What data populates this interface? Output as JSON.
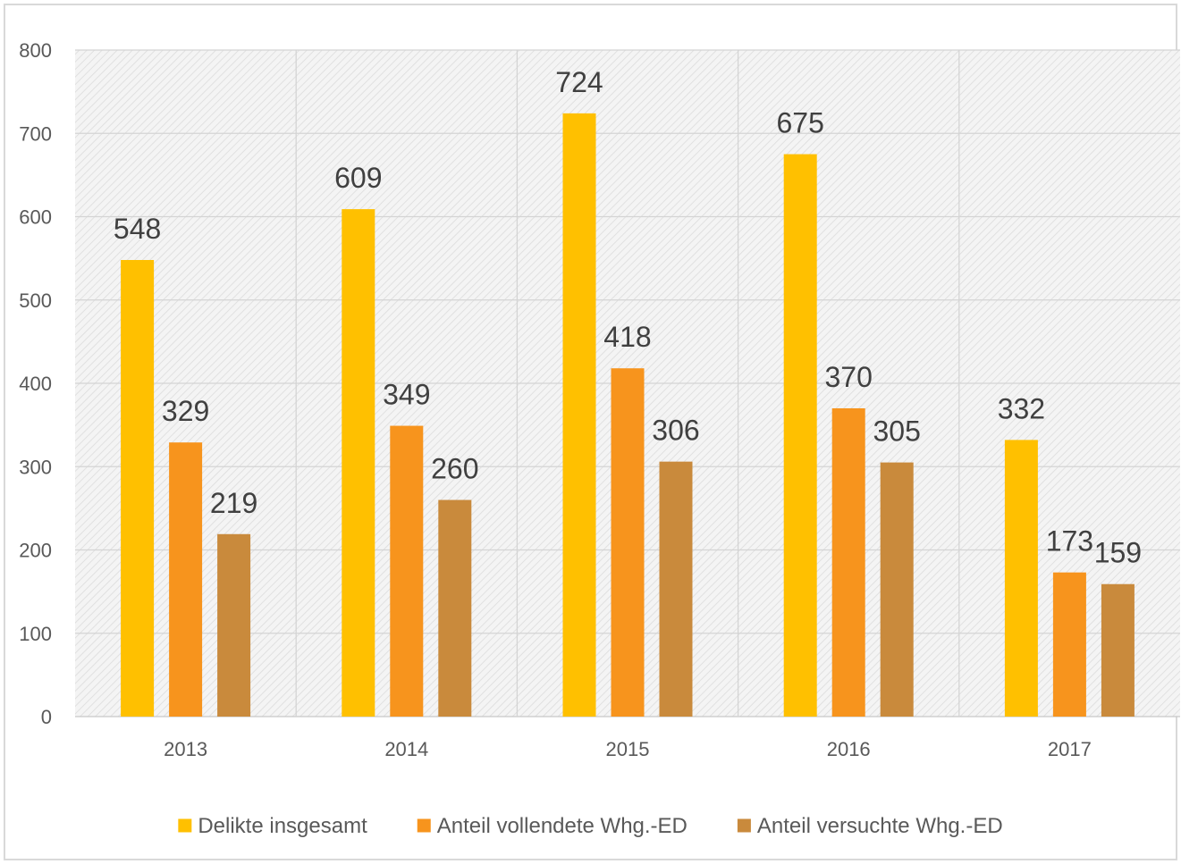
{
  "chart_data": {
    "type": "bar",
    "categories": [
      "2013",
      "2014",
      "2015",
      "2016",
      "2017"
    ],
    "series": [
      {
        "name": "Delikte insgesamt",
        "color": "#ffc000",
        "values": [
          548,
          609,
          724,
          675,
          332
        ]
      },
      {
        "name": "Anteil vollendete Whg.-ED",
        "color": "#f7941d",
        "values": [
          329,
          349,
          418,
          370,
          173
        ]
      },
      {
        "name": "Anteil versuchte Whg.-ED",
        "color": "#c98a3c",
        "values": [
          219,
          260,
          306,
          305,
          159
        ]
      }
    ],
    "yticks": [
      "0",
      "100",
      "200",
      "300",
      "400",
      "500",
      "600",
      "700",
      "800"
    ],
    "ylim": [
      0,
      800
    ],
    "title": "",
    "xlabel": "",
    "ylabel": "",
    "grid": true,
    "legend_position": "bottom",
    "data_labels": true
  }
}
